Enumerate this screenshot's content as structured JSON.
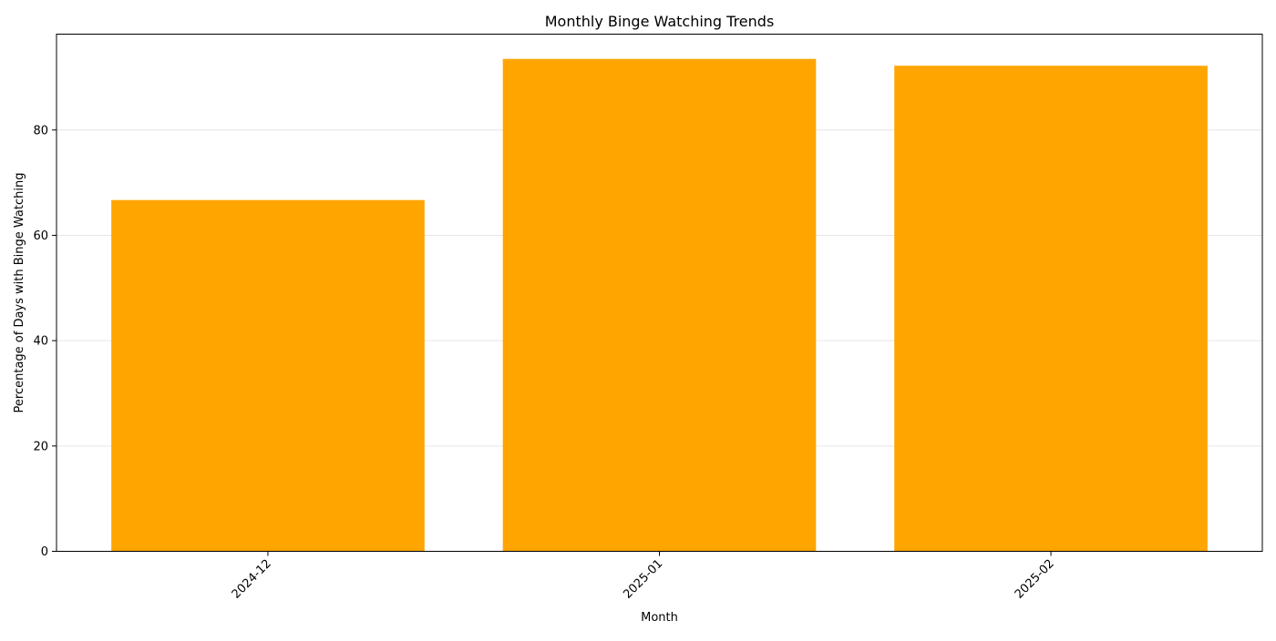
{
  "chart_data": {
    "type": "bar",
    "title": "Monthly Binge Watching Trends",
    "xlabel": "Month",
    "ylabel": "Percentage of Days with Binge Watching",
    "categories": [
      "2024-12",
      "2025-01",
      "2025-02"
    ],
    "values": [
      66.7,
      93.5,
      92.2
    ],
    "ylim": [
      0,
      98.2
    ],
    "yticks": [
      0,
      20,
      40,
      60,
      80
    ],
    "grid": "y-axis only",
    "bar_color": "#FFA500",
    "x_tick_rotation": "45 degrees"
  }
}
